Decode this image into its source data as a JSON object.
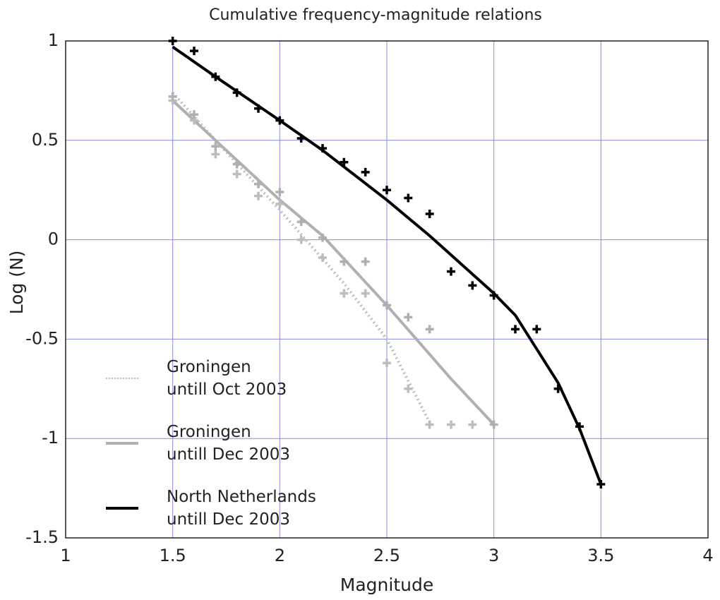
{
  "chart_data": {
    "type": "scatter",
    "title": "Cumulative frequency-magnitude relations",
    "xlabel": "Magnitude",
    "ylabel": "Log (N)",
    "xlim": [
      1,
      4
    ],
    "ylim": [
      -1.5,
      1
    ],
    "xticks": [
      1,
      1.5,
      2,
      2.5,
      3,
      3.5,
      4
    ],
    "yticks": [
      -1.5,
      -1,
      -0.5,
      0,
      0.5,
      1
    ],
    "grid": true,
    "grid_color": "#8a8ae6",
    "legend": "lower left",
    "series": [
      {
        "name": "Groningen\nuntill Oct 2003",
        "color": "#bdbdbd",
        "line_style": "dotted",
        "x": [
          1.5,
          1.6,
          1.7,
          1.8,
          1.9,
          2.0,
          2.1,
          2.2,
          2.3,
          2.4,
          2.5,
          2.6,
          2.7,
          2.8,
          2.9
        ],
        "values": [
          0.7,
          0.6,
          0.43,
          0.33,
          0.22,
          0.18,
          0.0,
          -0.09,
          -0.27,
          -0.27,
          -0.62,
          -0.75,
          -0.93,
          -0.93,
          -0.93
        ],
        "fit_x": [
          1.5,
          1.7,
          2.0,
          2.3,
          2.5,
          2.7
        ],
        "fit_values": [
          0.74,
          0.5,
          0.15,
          -0.22,
          -0.5,
          -0.92
        ]
      },
      {
        "name": "Groningen\n untill Dec 2003",
        "color": "#b0b0b0",
        "line_style": "solid",
        "x": [
          1.5,
          1.6,
          1.7,
          1.8,
          1.9,
          2.0,
          2.1,
          2.2,
          2.3,
          2.4,
          2.5,
          2.6,
          2.7,
          3.0
        ],
        "values": [
          0.72,
          0.63,
          0.47,
          0.38,
          0.28,
          0.24,
          0.09,
          0.01,
          -0.11,
          -0.11,
          -0.33,
          -0.39,
          -0.45,
          -0.93
        ],
        "fit_x": [
          1.5,
          1.7,
          2.0,
          2.2,
          2.5,
          2.8,
          3.0
        ],
        "fit_values": [
          0.7,
          0.5,
          0.2,
          0.02,
          -0.33,
          -0.7,
          -0.93
        ]
      },
      {
        "name": "North Netherlands\nuntill Dec 2003",
        "color": "#000000",
        "line_style": "solid",
        "x": [
          1.5,
          1.6,
          1.7,
          1.8,
          1.9,
          2.0,
          2.1,
          2.2,
          2.3,
          2.4,
          2.5,
          2.6,
          2.7,
          2.8,
          2.9,
          3.0,
          3.1,
          3.2,
          3.3,
          3.4,
          3.5
        ],
        "values": [
          1.0,
          0.95,
          0.82,
          0.74,
          0.66,
          0.6,
          0.51,
          0.46,
          0.39,
          0.34,
          0.25,
          0.21,
          0.13,
          -0.16,
          -0.23,
          -0.28,
          -0.45,
          -0.45,
          -0.75,
          -0.94,
          -1.23
        ],
        "fit_x": [
          1.5,
          1.7,
          2.0,
          2.2,
          2.5,
          2.7,
          3.0,
          3.1,
          3.3,
          3.4,
          3.5
        ],
        "fit_values": [
          0.97,
          0.82,
          0.6,
          0.45,
          0.2,
          0.02,
          -0.27,
          -0.38,
          -0.72,
          -0.95,
          -1.23
        ]
      }
    ]
  }
}
